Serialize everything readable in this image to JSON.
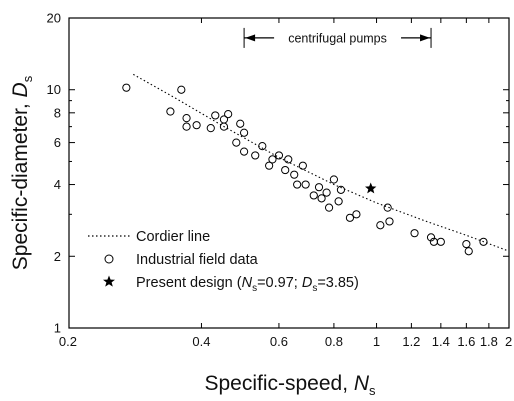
{
  "chart_data": {
    "type": "scatter",
    "x_scale": "log",
    "y_scale": "log",
    "xlim": [
      0.2,
      2
    ],
    "ylim": [
      1,
      20
    ],
    "xlabel": "Specific-speed, ",
    "xlabel_symbol": "N",
    "xlabel_sub": "s",
    "ylabel": "Specific-diameter, ",
    "ylabel_symbol": "D",
    "ylabel_sub": "s",
    "x_ticks": [
      {
        "value": 0.2,
        "label": "0.2"
      },
      {
        "value": 0.4,
        "label": "0.4"
      },
      {
        "value": 0.6,
        "label": "0.6"
      },
      {
        "value": 0.8,
        "label": "0.8"
      },
      {
        "value": 1.0,
        "label": "1"
      },
      {
        "value": 1.2,
        "label": "1.2"
      },
      {
        "value": 1.4,
        "label": "1.4"
      },
      {
        "value": 1.6,
        "label": "1.6"
      },
      {
        "value": 1.8,
        "label": "1.8"
      },
      {
        "value": 2.0,
        "label": "2"
      }
    ],
    "y_ticks": [
      {
        "value": 1,
        "label": "1"
      },
      {
        "value": 2,
        "label": "2"
      },
      {
        "value": 4,
        "label": "4"
      },
      {
        "value": 6,
        "label": "6"
      },
      {
        "value": 8,
        "label": "8"
      },
      {
        "value": 10,
        "label": "10"
      },
      {
        "value": 20,
        "label": "20"
      }
    ],
    "annotation": {
      "label": "centrifugal pumps",
      "x_range": [
        0.5,
        1.33
      ],
      "y": 16.5
    },
    "series": [
      {
        "name": "Cordier line",
        "style": "dotted-line",
        "x": [
          0.28,
          0.35,
          0.45,
          0.6,
          0.8,
          1.0,
          1.3,
          1.6,
          2.0
        ],
        "y": [
          11.6,
          9.2,
          7.0,
          5.2,
          4.0,
          3.35,
          2.8,
          2.45,
          2.1
        ]
      },
      {
        "name": "Industrial field data",
        "style": "open-circle",
        "points": [
          [
            0.27,
            10.2
          ],
          [
            0.34,
            8.1
          ],
          [
            0.36,
            10.0
          ],
          [
            0.37,
            7.6
          ],
          [
            0.37,
            7.0
          ],
          [
            0.39,
            7.1
          ],
          [
            0.42,
            6.9
          ],
          [
            0.43,
            7.8
          ],
          [
            0.45,
            7.5
          ],
          [
            0.45,
            7.0
          ],
          [
            0.46,
            7.9
          ],
          [
            0.48,
            6.0
          ],
          [
            0.49,
            7.2
          ],
          [
            0.5,
            6.6
          ],
          [
            0.5,
            5.5
          ],
          [
            0.53,
            5.3
          ],
          [
            0.55,
            5.8
          ],
          [
            0.57,
            4.8
          ],
          [
            0.58,
            5.1
          ],
          [
            0.6,
            5.3
          ],
          [
            0.62,
            4.6
          ],
          [
            0.63,
            5.1
          ],
          [
            0.65,
            4.4
          ],
          [
            0.66,
            4.0
          ],
          [
            0.68,
            4.8
          ],
          [
            0.69,
            4.0
          ],
          [
            0.72,
            3.6
          ],
          [
            0.74,
            3.9
          ],
          [
            0.75,
            3.5
          ],
          [
            0.77,
            3.7
          ],
          [
            0.78,
            3.2
          ],
          [
            0.8,
            4.2
          ],
          [
            0.82,
            3.4
          ],
          [
            0.83,
            3.8
          ],
          [
            0.87,
            2.9
          ],
          [
            0.9,
            3.0
          ],
          [
            1.02,
            2.7
          ],
          [
            1.06,
            3.2
          ],
          [
            1.07,
            2.8
          ],
          [
            1.22,
            2.5
          ],
          [
            1.33,
            2.4
          ],
          [
            1.35,
            2.3
          ],
          [
            1.4,
            2.3
          ],
          [
            1.6,
            2.25
          ],
          [
            1.62,
            2.1
          ],
          [
            1.75,
            2.3
          ]
        ]
      },
      {
        "name": "Present design (",
        "name_tail": "=0.97; ",
        "name_tail2": "=3.85)",
        "style": "star",
        "points": [
          [
            0.97,
            3.85
          ]
        ]
      }
    ],
    "legend": {
      "position": "lower-left"
    }
  }
}
